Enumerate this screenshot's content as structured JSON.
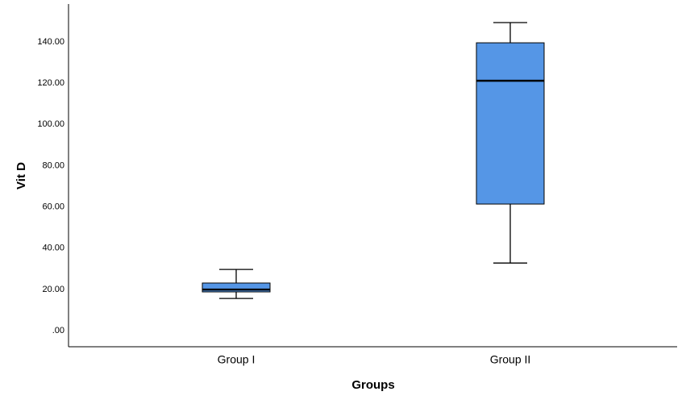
{
  "chart_data": {
    "type": "boxplot",
    "x_label": "Groups",
    "y_label": "Vit D",
    "categories": [
      "Group I",
      "Group II"
    ],
    "boxes": [
      {
        "whisker_low": 15.6,
        "q1": 18.8,
        "median": 19.9,
        "q3": 23.1,
        "whisker_high": 29.7
      },
      {
        "whisker_low": 32.8,
        "q1": 61.4,
        "median": 121.2,
        "q3": 139.6,
        "whisker_high": 149.4
      }
    ],
    "color": "#5596e6",
    "ylim": [
      -7.8,
      158.4
    ],
    "yticks": [
      {
        "value": 0,
        "label": ".00"
      },
      {
        "value": 20,
        "label": "20.00"
      },
      {
        "value": 40,
        "label": "40.00"
      },
      {
        "value": 60,
        "label": "60.00"
      },
      {
        "value": 80,
        "label": "80.00"
      },
      {
        "value": 100,
        "label": "100.00"
      },
      {
        "value": 120,
        "label": "120.00"
      },
      {
        "value": 140,
        "label": "140.00"
      }
    ],
    "grid": false
  }
}
